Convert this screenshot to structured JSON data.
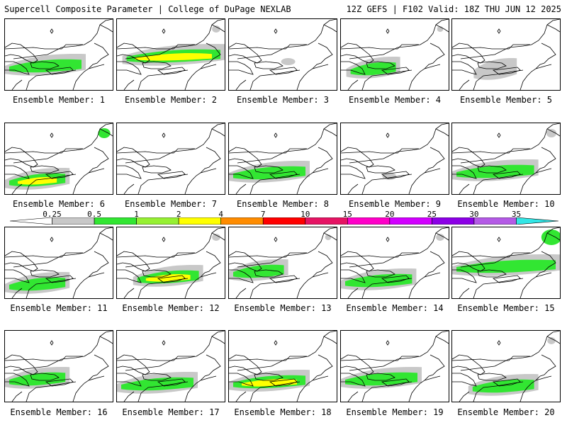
{
  "header": {
    "title_left": "Supercell Composite Parameter | College of DuPage NEXLAB",
    "title_right": "12Z GEFS | F102 Valid: 18Z THU JUN 12 2025"
  },
  "colorbar": {
    "labels": [
      "0.25",
      "0.5",
      "1",
      "2",
      "4",
      "7",
      "10",
      "15",
      "20",
      "25",
      "30",
      "35"
    ],
    "colors": [
      "#c8c8c8",
      "#32e632",
      "#96f032",
      "#ffff00",
      "#ff8c00",
      "#ff0000",
      "#e61464",
      "#ff00c8",
      "#d200ff",
      "#8c00e6",
      "#b45ae6",
      "#32e6e6"
    ]
  },
  "members": [
    {
      "label": "Ensemble Member: 1",
      "level": 2,
      "band": 66,
      "extent": [
        0,
        0.75
      ],
      "ne": 0
    },
    {
      "label": "Ensemble Member: 2",
      "level": 3,
      "band": 52,
      "extent": [
        0.05,
        1.0
      ],
      "ne": 0.2
    },
    {
      "label": "Ensemble Member: 3",
      "level": 0,
      "band": 60,
      "extent": [
        0.5,
        0.6
      ],
      "ne": 0.1
    },
    {
      "label": "Ensemble Member: 4",
      "level": 2,
      "band": 70,
      "extent": [
        0.05,
        0.55
      ],
      "ne": 0.1
    },
    {
      "label": "Ensemble Member: 5",
      "level": 1,
      "band": 72,
      "extent": [
        0.2,
        0.6
      ],
      "ne": 0
    },
    {
      "label": "Ensemble Member: 6",
      "level": 3,
      "band": 80,
      "extent": [
        0,
        0.6
      ],
      "ne": 0.4
    },
    {
      "label": "Ensemble Member: 7",
      "level": 0,
      "band": 0,
      "extent": [
        0,
        0
      ],
      "ne": 0
    },
    {
      "label": "Ensemble Member: 8",
      "level": 2,
      "band": 70,
      "extent": [
        0,
        0.75
      ],
      "ne": 0
    },
    {
      "label": "Ensemble Member: 9",
      "level": 0,
      "band": 75,
      "extent": [
        0.35,
        0.55
      ],
      "ne": 0
    },
    {
      "label": "Ensemble Member: 10",
      "level": 2,
      "band": 68,
      "extent": [
        0,
        0.8
      ],
      "ne": 0.3
    },
    {
      "label": "Ensemble Member: 11",
      "level": 2,
      "band": 80,
      "extent": [
        0,
        0.6
      ],
      "ne": 0
    },
    {
      "label": "Ensemble Member: 12",
      "level": 3,
      "band": 70,
      "extent": [
        0.15,
        0.8
      ],
      "ne": 0.2
    },
    {
      "label": "Ensemble Member: 13",
      "level": 2,
      "band": 62,
      "extent": [
        0,
        0.55
      ],
      "ne": 0.1
    },
    {
      "label": "Ensemble Member: 14",
      "level": 2,
      "band": 75,
      "extent": [
        0,
        0.7
      ],
      "ne": 0.2
    },
    {
      "label": "Ensemble Member: 15",
      "level": 2,
      "band": 55,
      "extent": [
        0,
        1.0
      ],
      "ne": 0.8
    },
    {
      "label": "Ensemble Member: 16",
      "level": 2,
      "band": 68,
      "extent": [
        0,
        0.6
      ],
      "ne": 0
    },
    {
      "label": "Ensemble Member: 17",
      "level": 2,
      "band": 75,
      "extent": [
        0,
        0.75
      ],
      "ne": 0
    },
    {
      "label": "Ensemble Member: 18",
      "level": 3,
      "band": 72,
      "extent": [
        0,
        0.75
      ],
      "ne": 0
    },
    {
      "label": "Ensemble Member: 19",
      "level": 2,
      "band": 68,
      "extent": [
        0,
        0.75
      ],
      "ne": 0
    },
    {
      "label": "Ensemble Member: 20",
      "level": 2,
      "band": 78,
      "extent": [
        0.15,
        0.8
      ],
      "ne": 0.2
    }
  ]
}
